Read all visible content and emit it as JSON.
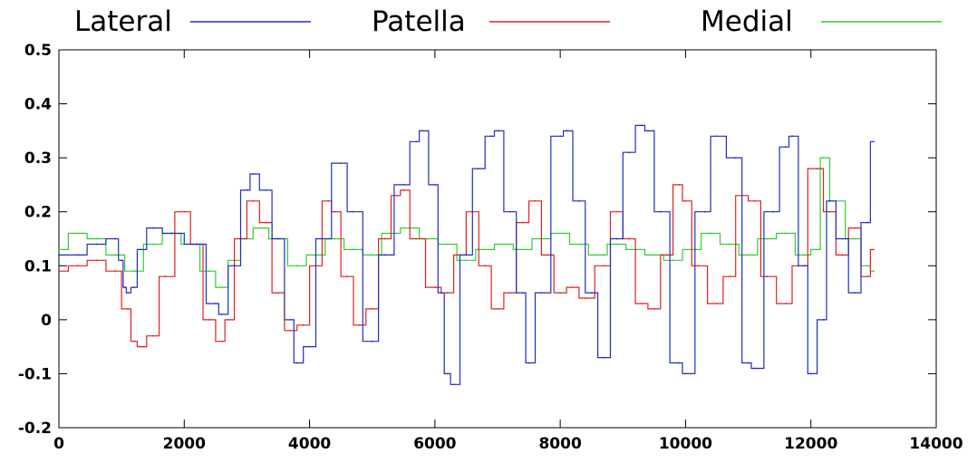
{
  "chart_data": {
    "type": "line",
    "title": "",
    "xlabel": "",
    "ylabel": "",
    "xlim": [
      0,
      14000
    ],
    "ylim": [
      -0.2,
      0.5
    ],
    "x_ticks": [
      0,
      2000,
      4000,
      6000,
      8000,
      10000,
      12000,
      14000
    ],
    "x_tick_labels": [
      "0",
      "2000",
      "4000",
      "6000",
      "8000",
      "10000",
      "12000",
      "14000"
    ],
    "y_ticks": [
      -0.2,
      -0.1,
      0,
      0.1,
      0.2,
      0.3,
      0.4,
      0.5
    ],
    "y_tick_labels": [
      "-0.2",
      "-0.1",
      "0",
      "0.1",
      "0.2",
      "0.3",
      "0.4",
      "0.5"
    ],
    "grid": false,
    "legend_position": "top, horizontal above plot",
    "series": [
      {
        "name": "Lateral",
        "color": "#1f2fbf",
        "x": [
          0,
          300,
          600,
          900,
          1000,
          1050,
          1100,
          1200,
          1300,
          1500,
          1800,
          2200,
          2500,
          2600,
          2800,
          3000,
          3100,
          3300,
          3500,
          3700,
          3800,
          4000,
          4200,
          4500,
          4700,
          5000,
          5200,
          5500,
          5700,
          5800,
          6000,
          6100,
          6200,
          6300,
          6500,
          6700,
          6900,
          7000,
          7200,
          7400,
          7500,
          7700,
          8000,
          8100,
          8300,
          8500,
          8700,
          8900,
          9100,
          9300,
          9400,
          9600,
          9900,
          10000,
          10300,
          10500,
          10800,
          11000,
          11100,
          11400,
          11600,
          11700,
          11900,
          12000,
          12200,
          12300,
          12500,
          12700,
          12900,
          13000
        ],
        "values": [
          0.12,
          0.12,
          0.14,
          0.15,
          0.11,
          0.06,
          0.05,
          0.06,
          0.13,
          0.17,
          0.16,
          0.14,
          0.03,
          0.01,
          0.1,
          0.24,
          0.27,
          0.24,
          0.15,
          0.0,
          -0.08,
          -0.05,
          0.15,
          0.29,
          0.2,
          -0.04,
          0.12,
          0.25,
          0.33,
          0.35,
          0.25,
          0.05,
          -0.1,
          -0.12,
          0.12,
          0.28,
          0.34,
          0.35,
          0.2,
          0.05,
          -0.08,
          0.05,
          0.34,
          0.35,
          0.22,
          0.05,
          -0.07,
          0.15,
          0.31,
          0.36,
          0.35,
          0.2,
          -0.08,
          -0.1,
          0.2,
          0.34,
          0.3,
          -0.08,
          -0.09,
          0.2,
          0.32,
          0.34,
          0.1,
          -0.1,
          0.0,
          0.22,
          0.15,
          0.05,
          0.18,
          0.33
        ]
      },
      {
        "name": "Patella",
        "color": "#e02020",
        "x": [
          0,
          300,
          600,
          900,
          1100,
          1200,
          1300,
          1500,
          1700,
          2000,
          2200,
          2400,
          2600,
          2700,
          2900,
          3100,
          3300,
          3500,
          3700,
          3900,
          4100,
          4300,
          4400,
          4600,
          4800,
          5000,
          5200,
          5400,
          5500,
          5700,
          6000,
          6200,
          6400,
          6600,
          6800,
          7000,
          7200,
          7400,
          7600,
          7800,
          8000,
          8200,
          8400,
          8700,
          8900,
          9100,
          9300,
          9500,
          9700,
          9900,
          10000,
          10200,
          10500,
          10700,
          10900,
          11100,
          11300,
          11600,
          11800,
          12100,
          12300,
          12500,
          12700,
          12900,
          13000
        ],
        "values": [
          0.09,
          0.1,
          0.11,
          0.09,
          0.02,
          -0.04,
          -0.05,
          -0.03,
          0.08,
          0.2,
          0.14,
          0.0,
          -0.04,
          0.0,
          0.15,
          0.22,
          0.18,
          0.05,
          -0.02,
          -0.01,
          0.1,
          0.22,
          0.2,
          0.08,
          -0.01,
          0.02,
          0.15,
          0.23,
          0.24,
          0.15,
          0.06,
          0.05,
          0.12,
          0.2,
          0.1,
          0.02,
          0.05,
          0.18,
          0.22,
          0.12,
          0.05,
          0.06,
          0.04,
          0.1,
          0.2,
          0.15,
          0.03,
          0.02,
          0.12,
          0.25,
          0.22,
          0.1,
          0.03,
          0.08,
          0.23,
          0.22,
          0.08,
          0.03,
          0.1,
          0.28,
          0.2,
          0.12,
          0.17,
          0.08,
          0.13
        ]
      },
      {
        "name": "Medial",
        "color": "#33cc33",
        "x": [
          0,
          300,
          600,
          900,
          1200,
          1500,
          1800,
          2100,
          2400,
          2600,
          2800,
          3000,
          3200,
          3500,
          3800,
          4100,
          4400,
          4700,
          5000,
          5300,
          5600,
          5900,
          6200,
          6500,
          6800,
          7100,
          7400,
          7700,
          8000,
          8300,
          8600,
          8900,
          9200,
          9500,
          9800,
          10100,
          10400,
          10700,
          11000,
          11300,
          11600,
          11900,
          12100,
          12200,
          12400,
          12700,
          12900,
          13000
        ],
        "values": [
          0.13,
          0.16,
          0.15,
          0.12,
          0.09,
          0.14,
          0.16,
          0.14,
          0.09,
          0.06,
          0.11,
          0.15,
          0.17,
          0.15,
          0.1,
          0.12,
          0.15,
          0.13,
          0.12,
          0.16,
          0.17,
          0.15,
          0.14,
          0.11,
          0.13,
          0.14,
          0.13,
          0.15,
          0.16,
          0.14,
          0.12,
          0.14,
          0.13,
          0.12,
          0.11,
          0.13,
          0.16,
          0.14,
          0.12,
          0.15,
          0.16,
          0.12,
          0.13,
          0.3,
          0.22,
          0.15,
          0.1,
          0.09
        ]
      }
    ]
  }
}
